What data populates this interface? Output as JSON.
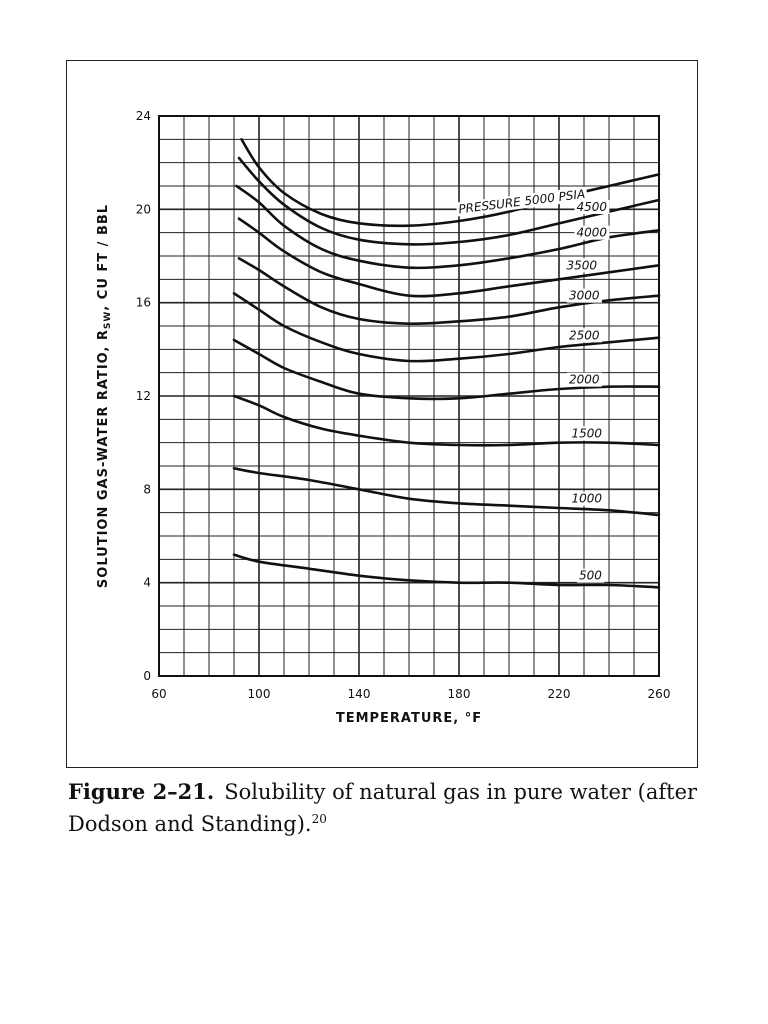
{
  "chart_data": {
    "type": "line",
    "xlabel": "TEMPERATURE, °F",
    "ylabel_main": "SOLUTION GAS-WATER RATIO, R",
    "ylabel_sub": "SW",
    "ylabel_unit": ", CU FT / BBL",
    "xlim": [
      60,
      260
    ],
    "ylim": [
      0,
      24
    ],
    "x_ticks": [
      60,
      100,
      140,
      180,
      220,
      260
    ],
    "y_ticks": [
      0,
      4,
      8,
      12,
      16,
      20,
      24
    ],
    "x_tick_labels": [
      "60",
      "100",
      "140",
      "180",
      "220",
      "260"
    ],
    "y_tick_labels": [
      "0",
      "4",
      "8",
      "12",
      "16",
      "20",
      "24"
    ],
    "grid": true,
    "series": [
      {
        "name": "PRESSURE 5000 PSIA",
        "points": [
          [
            93,
            23.0
          ],
          [
            100,
            21.8
          ],
          [
            110,
            20.7
          ],
          [
            125,
            19.8
          ],
          [
            140,
            19.4
          ],
          [
            160,
            19.3
          ],
          [
            180,
            19.5
          ],
          [
            200,
            19.9
          ],
          [
            220,
            20.5
          ],
          [
            240,
            21.0
          ],
          [
            260,
            21.5
          ]
        ]
      },
      {
        "name": "4500",
        "points": [
          [
            92,
            22.2
          ],
          [
            100,
            21.2
          ],
          [
            110,
            20.2
          ],
          [
            125,
            19.2
          ],
          [
            140,
            18.7
          ],
          [
            160,
            18.5
          ],
          [
            180,
            18.6
          ],
          [
            200,
            18.9
          ],
          [
            220,
            19.4
          ],
          [
            240,
            19.9
          ],
          [
            260,
            20.4
          ]
        ]
      },
      {
        "name": "4000",
        "points": [
          [
            91,
            21.0
          ],
          [
            100,
            20.3
          ],
          [
            110,
            19.3
          ],
          [
            125,
            18.3
          ],
          [
            140,
            17.8
          ],
          [
            160,
            17.5
          ],
          [
            180,
            17.6
          ],
          [
            200,
            17.9
          ],
          [
            220,
            18.3
          ],
          [
            240,
            18.8
          ],
          [
            260,
            19.1
          ]
        ]
      },
      {
        "name": "3500",
        "points": [
          [
            92,
            19.6
          ],
          [
            100,
            19.0
          ],
          [
            110,
            18.2
          ],
          [
            125,
            17.3
          ],
          [
            140,
            16.8
          ],
          [
            160,
            16.3
          ],
          [
            180,
            16.4
          ],
          [
            200,
            16.7
          ],
          [
            220,
            17.0
          ],
          [
            240,
            17.3
          ],
          [
            260,
            17.6
          ]
        ]
      },
      {
        "name": "3000",
        "points": [
          [
            92,
            17.9
          ],
          [
            100,
            17.4
          ],
          [
            110,
            16.7
          ],
          [
            125,
            15.8
          ],
          [
            140,
            15.3
          ],
          [
            160,
            15.1
          ],
          [
            180,
            15.2
          ],
          [
            200,
            15.4
          ],
          [
            220,
            15.8
          ],
          [
            240,
            16.1
          ],
          [
            260,
            16.3
          ]
        ]
      },
      {
        "name": "2500",
        "points": [
          [
            90,
            16.4
          ],
          [
            100,
            15.7
          ],
          [
            110,
            15.0
          ],
          [
            125,
            14.3
          ],
          [
            140,
            13.8
          ],
          [
            160,
            13.5
          ],
          [
            180,
            13.6
          ],
          [
            200,
            13.8
          ],
          [
            220,
            14.1
          ],
          [
            240,
            14.3
          ],
          [
            260,
            14.5
          ]
        ]
      },
      {
        "name": "2000",
        "points": [
          [
            90,
            14.4
          ],
          [
            100,
            13.8
          ],
          [
            110,
            13.2
          ],
          [
            125,
            12.6
          ],
          [
            140,
            12.1
          ],
          [
            160,
            11.9
          ],
          [
            180,
            11.9
          ],
          [
            200,
            12.1
          ],
          [
            220,
            12.3
          ],
          [
            240,
            12.4
          ],
          [
            260,
            12.4
          ]
        ]
      },
      {
        "name": "1500",
        "points": [
          [
            90,
            12.0
          ],
          [
            100,
            11.6
          ],
          [
            110,
            11.1
          ],
          [
            125,
            10.6
          ],
          [
            140,
            10.3
          ],
          [
            160,
            10.0
          ],
          [
            180,
            9.9
          ],
          [
            200,
            9.9
          ],
          [
            220,
            10.0
          ],
          [
            240,
            10.0
          ],
          [
            260,
            9.9
          ]
        ]
      },
      {
        "name": "1000",
        "points": [
          [
            90,
            8.9
          ],
          [
            100,
            8.7
          ],
          [
            120,
            8.4
          ],
          [
            140,
            8.0
          ],
          [
            160,
            7.6
          ],
          [
            180,
            7.4
          ],
          [
            200,
            7.3
          ],
          [
            220,
            7.2
          ],
          [
            240,
            7.1
          ],
          [
            260,
            6.9
          ]
        ]
      },
      {
        "name": "500",
        "points": [
          [
            90,
            5.2
          ],
          [
            100,
            4.9
          ],
          [
            120,
            4.6
          ],
          [
            140,
            4.3
          ],
          [
            160,
            4.1
          ],
          [
            180,
            4.0
          ],
          [
            200,
            4.0
          ],
          [
            220,
            3.9
          ],
          [
            240,
            3.9
          ],
          [
            260,
            3.8
          ]
        ]
      }
    ],
    "curve_labels": [
      {
        "series": "PRESSURE 5000 PSIA",
        "x": 180,
        "y": 20.0
      },
      {
        "series": "4500",
        "x": 227,
        "y": 20.1
      },
      {
        "series": "4000",
        "x": 227,
        "y": 19.0
      },
      {
        "series": "3500",
        "x": 223,
        "y": 17.6
      },
      {
        "series": "3000",
        "x": 224,
        "y": 16.3
      },
      {
        "series": "2500",
        "x": 224,
        "y": 14.6
      },
      {
        "series": "2000",
        "x": 224,
        "y": 12.7
      },
      {
        "series": "1500",
        "x": 225,
        "y": 10.4
      },
      {
        "series": "1000",
        "x": 225,
        "y": 7.6
      },
      {
        "series": "500",
        "x": 228,
        "y": 4.3
      }
    ]
  },
  "caption": {
    "label": "Figure 2–21.",
    "text": "Solubility of natural gas in pure water (after Dodson and Standing).",
    "ref": "20"
  }
}
